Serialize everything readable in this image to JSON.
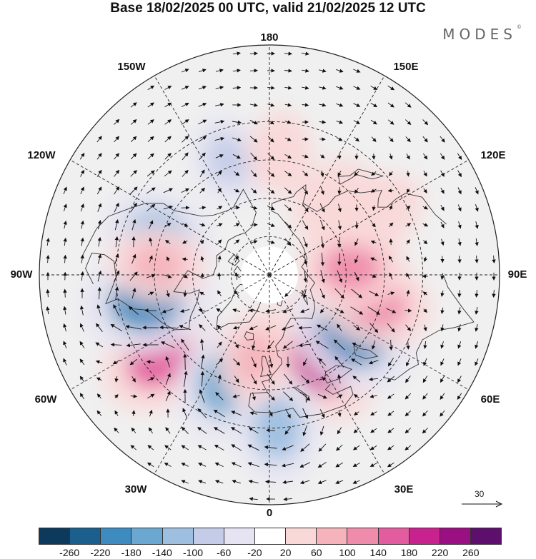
{
  "title": "Base 18/02/2025 00 UTC, valid 21/02/2025 12 UTC",
  "brand": "MODES",
  "brand_mark": "©",
  "longitude_labels": [
    {
      "text": "180",
      "lon": 180
    },
    {
      "text": "150E",
      "lon": 150
    },
    {
      "text": "120E",
      "lon": 120
    },
    {
      "text": "90E",
      "lon": 90
    },
    {
      "text": "60E",
      "lon": 60
    },
    {
      "text": "30E",
      "lon": 30
    },
    {
      "text": "0",
      "lon": 0
    },
    {
      "text": "30W",
      "lon": -30
    },
    {
      "text": "60W",
      "lon": -60
    },
    {
      "text": "90W",
      "lon": -90
    },
    {
      "text": "120W",
      "lon": -120
    },
    {
      "text": "150W",
      "lon": -150
    }
  ],
  "reference_vector": {
    "value": "30"
  },
  "colorbar": {
    "colors": [
      "#0d3a5c",
      "#1a5f8e",
      "#3d8bbf",
      "#6aa7d1",
      "#9ebfe0",
      "#c4cce8",
      "#e6e4f2",
      "#ffffff",
      "#f9d8d8",
      "#f5b3bc",
      "#ef8cab",
      "#e35c9f",
      "#c8228e",
      "#9a0f82",
      "#5e0f6e"
    ],
    "tick_labels": [
      "-260",
      "-220",
      "-180",
      "-140",
      "-100",
      "-60",
      "-20",
      "20",
      "60",
      "100",
      "140",
      "180",
      "220",
      "260"
    ]
  },
  "anomaly_centers": [
    {
      "lat": 52,
      "lon": 32,
      "value": 190
    },
    {
      "lat": 50,
      "lon": 55,
      "value": -180
    },
    {
      "lat": 47,
      "lon": 75,
      "value": 120
    },
    {
      "lat": 58,
      "lon": 95,
      "value": 110
    },
    {
      "lat": 36,
      "lon": -53,
      "value": 150
    },
    {
      "lat": 45,
      "lon": -22,
      "value": -150
    },
    {
      "lat": 41,
      "lon": -78,
      "value": -180
    },
    {
      "lat": 44,
      "lon": -110,
      "value": -120
    },
    {
      "lat": 46,
      "lon": -95,
      "value": 80
    },
    {
      "lat": 30,
      "lon": 3,
      "value": -120
    },
    {
      "lat": 57,
      "lon": -10,
      "value": 70
    },
    {
      "lat": 52,
      "lon": 140,
      "value": 60
    },
    {
      "lat": 40,
      "lon": 120,
      "value": 60
    },
    {
      "lat": 42,
      "lon": -160,
      "value": -60
    },
    {
      "lat": 42,
      "lon": 175,
      "value": 40
    }
  ]
}
